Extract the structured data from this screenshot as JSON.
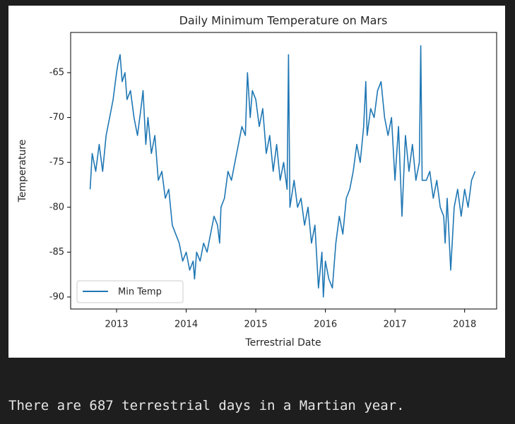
{
  "chart_data": {
    "type": "line",
    "title": "Daily Minimum Temperature on Mars",
    "x_label": "Terrestrial Date",
    "y_label": "Temperature",
    "x": [
      2012.62,
      2012.65,
      2012.7,
      2012.75,
      2012.8,
      2012.85,
      2012.9,
      2012.95,
      2013.0,
      2013.02,
      2013.05,
      2013.08,
      2013.12,
      2013.15,
      2013.2,
      2013.25,
      2013.3,
      2013.35,
      2013.38,
      2013.42,
      2013.45,
      2013.5,
      2013.55,
      2013.6,
      2013.65,
      2013.7,
      2013.75,
      2013.8,
      2013.85,
      2013.9,
      2013.95,
      2014.0,
      2014.05,
      2014.1,
      2014.12,
      2014.15,
      2014.2,
      2014.25,
      2014.3,
      2014.35,
      2014.4,
      2014.45,
      2014.48,
      2014.5,
      2014.55,
      2014.6,
      2014.65,
      2014.7,
      2014.75,
      2014.8,
      2014.85,
      2014.88,
      2014.92,
      2014.95,
      2015.0,
      2015.05,
      2015.1,
      2015.15,
      2015.2,
      2015.25,
      2015.3,
      2015.35,
      2015.4,
      2015.45,
      2015.47,
      2015.49,
      2015.55,
      2015.6,
      2015.65,
      2015.7,
      2015.75,
      2015.8,
      2015.85,
      2015.9,
      2015.95,
      2015.97,
      2016.0,
      2016.05,
      2016.1,
      2016.15,
      2016.2,
      2016.25,
      2016.3,
      2016.35,
      2016.4,
      2016.45,
      2016.5,
      2016.55,
      2016.58,
      2016.6,
      2016.65,
      2016.7,
      2016.75,
      2016.8,
      2016.85,
      2016.9,
      2016.95,
      2017.0,
      2017.05,
      2017.1,
      2017.15,
      2017.2,
      2017.25,
      2017.3,
      2017.35,
      2017.37,
      2017.39,
      2017.45,
      2017.5,
      2017.55,
      2017.6,
      2017.65,
      2017.7,
      2017.72,
      2017.75,
      2017.8,
      2017.85,
      2017.9,
      2017.95,
      2018.0,
      2018.05,
      2018.1,
      2018.15
    ],
    "series": [
      {
        "name": "Min Temp",
        "color": "#1f77b4",
        "values": [
          -78,
          -74,
          -76,
          -73,
          -76,
          -72,
          -70,
          -68,
          -65,
          -64,
          -63,
          -66,
          -65,
          -68,
          -67,
          -70,
          -72,
          -69,
          -67,
          -73,
          -70,
          -74,
          -72,
          -77,
          -76,
          -79,
          -78,
          -82,
          -83,
          -84,
          -86,
          -85,
          -87,
          -86,
          -88,
          -85,
          -86,
          -84,
          -85,
          -83,
          -81,
          -82,
          -84,
          -80,
          -79,
          -76,
          -77,
          -75,
          -73,
          -71,
          -72,
          -65,
          -70,
          -67,
          -68,
          -71,
          -69,
          -74,
          -72,
          -76,
          -73,
          -77,
          -75,
          -78,
          -63,
          -80,
          -77,
          -80,
          -79,
          -82,
          -80,
          -84,
          -82,
          -89,
          -85,
          -90,
          -86,
          -88,
          -89,
          -84,
          -81,
          -83,
          -79,
          -78,
          -76,
          -73,
          -75,
          -71,
          -66,
          -72,
          -69,
          -70,
          -67,
          -66,
          -70,
          -72,
          -70,
          -77,
          -71,
          -81,
          -72,
          -76,
          -73,
          -77,
          -75,
          -62,
          -77,
          -77,
          -76,
          -79,
          -77,
          -80,
          -81,
          -84,
          -79,
          -87,
          -80,
          -78,
          -81,
          -78,
          -80,
          -77,
          -76
        ]
      }
    ],
    "xlim": [
      2012.34,
      2018.46
    ],
    "xticks": [
      2013,
      2014,
      2015,
      2016,
      2017,
      2018
    ],
    "ylim": [
      -91.34,
      -60.52
    ],
    "yticks": [
      -90,
      -85,
      -80,
      -75,
      -70,
      -65
    ],
    "legend": "lower left",
    "grid": false
  },
  "output_text": "There are 687 terrestrial days in a Martian year."
}
